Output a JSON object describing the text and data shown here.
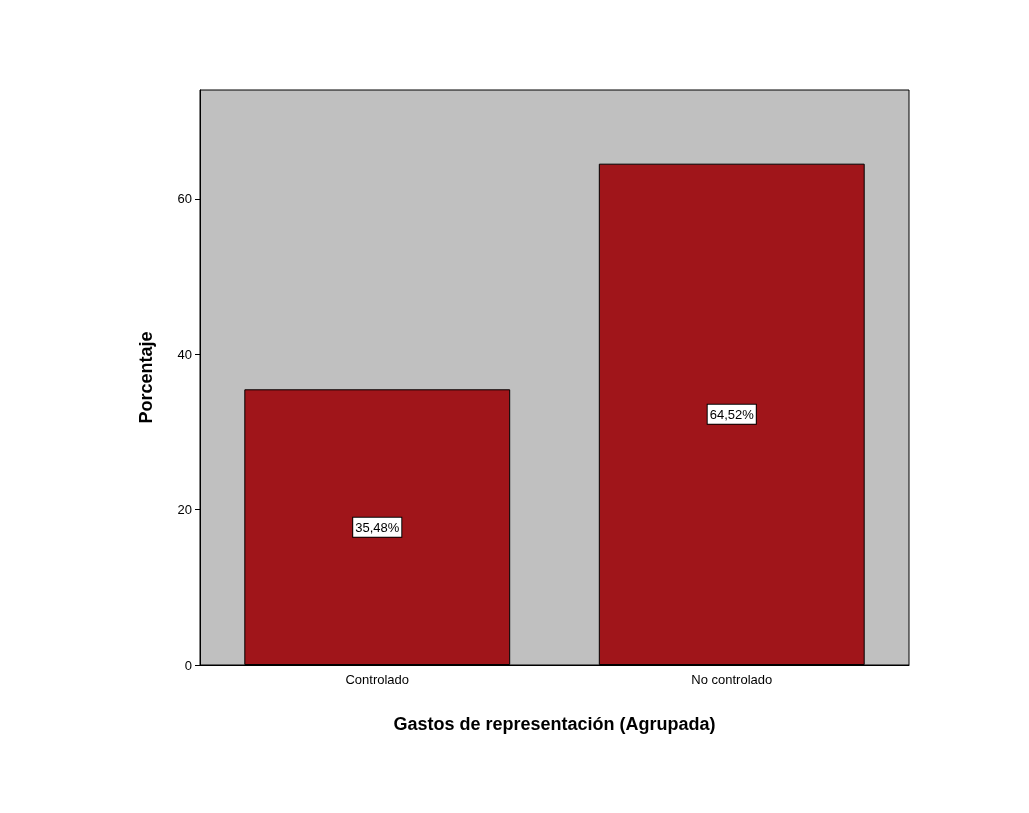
{
  "chart_data": {
    "type": "bar",
    "xlabel": "Gastos de representación (Agrupada)",
    "ylabel": "Porcentaje",
    "categories": [
      "Controlado",
      "No controlado"
    ],
    "values": [
      35.48,
      64.52
    ],
    "value_labels": [
      "35,48%",
      "64,52%"
    ],
    "color": "#a0151a",
    "ylim": [
      0,
      74
    ],
    "yticks": [
      0,
      20,
      40,
      60
    ],
    "grid": false
  }
}
